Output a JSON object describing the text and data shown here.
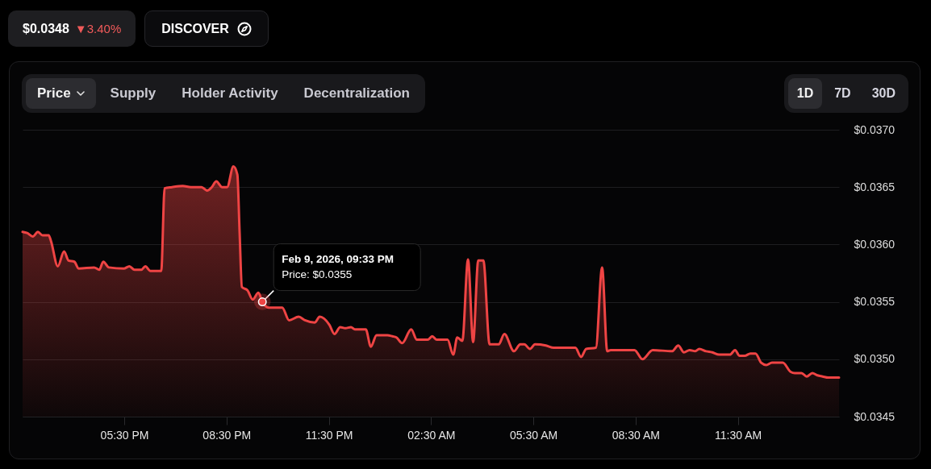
{
  "chart_data": {
    "type": "area",
    "color": "#ef4444",
    "x": [
      "2026-02-09T14:31",
      "2026-02-09T14:39",
      "2026-02-09T14:49",
      "2026-02-09T14:58",
      "2026-02-09T15:06",
      "2026-02-09T15:17",
      "2026-02-09T15:21",
      "2026-02-09T15:33",
      "2026-02-09T15:44",
      "2026-02-09T15:52",
      "2026-02-09T16:02",
      "2026-02-09T16:10",
      "2026-02-09T16:37",
      "2026-02-09T16:46",
      "2026-02-09T16:53",
      "2026-02-09T17:03",
      "2026-02-09T17:29",
      "2026-02-09T17:39",
      "2026-02-09T17:48",
      "2026-02-09T18:00",
      "2026-02-09T18:07",
      "2026-02-09T18:16",
      "2026-02-09T18:35",
      "2026-02-09T18:41",
      "2026-02-09T18:54",
      "2026-02-09T19:13",
      "2026-02-09T19:27",
      "2026-02-09T19:46",
      "2026-02-09T19:56",
      "2026-02-09T20:04",
      "2026-02-09T20:12",
      "2026-02-09T20:22",
      "2026-02-09T20:31",
      "2026-02-09T20:42",
      "2026-02-09T20:49",
      "2026-02-09T20:53",
      "2026-02-09T20:57",
      "2026-02-09T21:07",
      "2026-02-09T21:16",
      "2026-02-09T21:26",
      "2026-02-09T21:33",
      "2026-02-09T21:44",
      "2026-02-09T22:08",
      "2026-02-09T22:20",
      "2026-02-09T22:37",
      "2026-02-09T22:48",
      "2026-02-09T23:05",
      "2026-02-09T23:14",
      "2026-02-09T23:31",
      "2026-02-09T23:40",
      "2026-02-09T23:50",
      "2026-02-09T23:59",
      "2026-02-10T00:09",
      "2026-02-10T00:16",
      "2026-02-10T00:35",
      "2026-02-10T00:44",
      "2026-02-10T00:54",
      "2026-02-10T01:13",
      "2026-02-10T01:22",
      "2026-02-10T01:29",
      "2026-02-10T01:39",
      "2026-02-10T01:55",
      "2026-02-10T02:05",
      "2026-02-10T02:24",
      "2026-02-10T02:32",
      "2026-02-10T02:40",
      "2026-02-10T02:59",
      "2026-02-10T03:09",
      "2026-02-10T03:16",
      "2026-02-10T03:25",
      "2026-02-10T03:35",
      "2026-02-10T03:44",
      "2026-02-10T03:53",
      "2026-02-10T04:02",
      "2026-02-10T04:13",
      "2026-02-10T04:29",
      "2026-02-10T04:39",
      "2026-02-10T04:56",
      "2026-02-10T05:07",
      "2026-02-10T05:14",
      "2026-02-10T05:24",
      "2026-02-10T05:33",
      "2026-02-10T05:52",
      "2026-02-10T06:06",
      "2026-02-10T06:44",
      "2026-02-10T06:54",
      "2026-02-10T07:03",
      "2026-02-10T07:20",
      "2026-02-10T07:31",
      "2026-02-10T07:40",
      "2026-02-10T07:46",
      "2026-02-10T08:28",
      "2026-02-10T08:42",
      "2026-02-10T09:00",
      "2026-02-10T09:34",
      "2026-02-10T09:45",
      "2026-02-10T09:55",
      "2026-02-10T10:05",
      "2026-02-10T10:15",
      "2026-02-10T10:22",
      "2026-02-10T10:34",
      "2026-02-10T10:45",
      "2026-02-10T10:57",
      "2026-02-10T11:16",
      "2026-02-10T11:25",
      "2026-02-10T11:33",
      "2026-02-10T11:42",
      "2026-02-10T11:52",
      "2026-02-10T12:01",
      "2026-02-10T12:11",
      "2026-02-10T12:20",
      "2026-02-10T12:30",
      "2026-02-10T12:49",
      "2026-02-10T13:03",
      "2026-02-10T13:10",
      "2026-02-10T13:22",
      "2026-02-10T13:31",
      "2026-02-10T13:41",
      "2026-02-10T13:50",
      "2026-02-10T13:59",
      "2026-02-10T14:09",
      "2026-02-10T14:28"
    ],
    "values": [
      0.03611,
      0.0361,
      0.03607,
      0.03611,
      0.03608,
      0.03608,
      0.03603,
      0.03581,
      0.03594,
      0.03586,
      0.03585,
      0.03579,
      0.0358,
      0.03578,
      0.03585,
      0.0358,
      0.03579,
      0.03581,
      0.03578,
      0.03578,
      0.03581,
      0.03577,
      0.03577,
      0.03649,
      0.0365,
      0.03651,
      0.0365,
      0.0365,
      0.03647,
      0.0365,
      0.03655,
      0.0365,
      0.0365,
      0.03668,
      0.03661,
      0.0361,
      0.03563,
      0.0356,
      0.03552,
      0.03558,
      0.0355,
      0.03545,
      0.03545,
      0.03534,
      0.03537,
      0.03534,
      0.03532,
      0.03537,
      0.0353,
      0.03522,
      0.03528,
      0.03527,
      0.03528,
      0.03526,
      0.03526,
      0.03511,
      0.03521,
      0.03521,
      0.0352,
      0.03519,
      0.03514,
      0.03526,
      0.03517,
      0.03517,
      0.0352,
      0.03517,
      0.03517,
      0.03504,
      0.03519,
      0.03516,
      0.03587,
      0.03515,
      0.03586,
      0.03586,
      0.03513,
      0.03513,
      0.03522,
      0.03507,
      0.03513,
      0.03513,
      0.03509,
      0.03513,
      0.03512,
      0.0351,
      0.0351,
      0.03502,
      0.03509,
      0.0351,
      0.0358,
      0.03507,
      0.03508,
      0.03508,
      0.035,
      0.03508,
      0.03507,
      0.03512,
      0.03506,
      0.03508,
      0.03507,
      0.03509,
      0.03507,
      0.03506,
      0.03504,
      0.03504,
      0.03508,
      0.03503,
      0.03503,
      0.03505,
      0.03505,
      0.03497,
      0.03495,
      0.03497,
      0.03497,
      0.03489,
      0.03488,
      0.03488,
      0.03485,
      0.03488,
      0.03486,
      0.03485,
      0.03484,
      0.03484
    ],
    "xlim": [
      "2026-02-09T14:31",
      "2026-02-10T14:28"
    ],
    "xticks": [
      {
        "value": "2026-02-09T17:30",
        "label": "05:30 PM"
      },
      {
        "value": "2026-02-09T20:30",
        "label": "08:30 PM"
      },
      {
        "value": "2026-02-09T23:30",
        "label": "11:30 PM"
      },
      {
        "value": "2026-02-10T02:30",
        "label": "02:30 AM"
      },
      {
        "value": "2026-02-10T05:30",
        "label": "05:30 AM"
      },
      {
        "value": "2026-02-10T08:30",
        "label": "08:30 AM"
      },
      {
        "value": "2026-02-10T11:30",
        "label": "11:30 AM"
      }
    ],
    "ylim": [
      0.0345,
      0.037
    ],
    "yticks": [
      {
        "value": 0.0345,
        "label": "$0.0345"
      },
      {
        "value": 0.035,
        "label": "$0.0350"
      },
      {
        "value": 0.0355,
        "label": "$0.0355"
      },
      {
        "value": 0.036,
        "label": "$0.0360"
      },
      {
        "value": 0.0365,
        "label": "$0.0365"
      },
      {
        "value": 0.037,
        "label": "$0.0370"
      }
    ],
    "grid": "y",
    "annotations": [
      "$0.0348",
      "▼3.40%",
      "DISCOVER",
      "Price",
      "Supply",
      "Holder Activity",
      "Decentralization",
      "1D",
      "7D",
      "30D",
      "Feb 9, 2026, 09:33 PM",
      {
        "text": "Price: $0.0355",
        "x": "2026-02-09T21:33",
        "y": 0.0355
      }
    ]
  }
}
